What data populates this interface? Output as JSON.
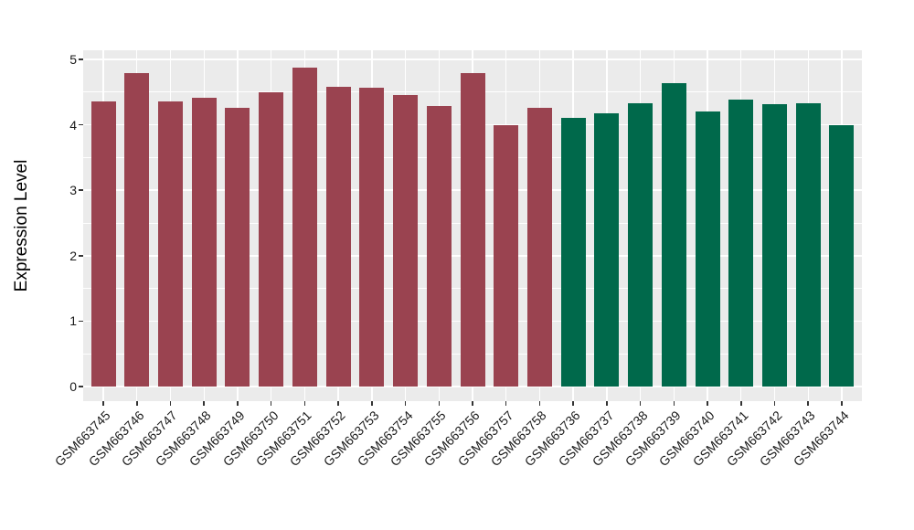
{
  "chart_data": {
    "type": "bar",
    "title": "",
    "xlabel": "",
    "ylabel": "Expression Level",
    "ylim": [
      0,
      5
    ],
    "yticks": [
      0,
      1,
      2,
      3,
      4,
      5
    ],
    "legend_position": "none",
    "grid": "white major and minor horizontal gridlines plus vertical gridlines at each category center, on gray panel",
    "panel_background": "#EBEBEB",
    "gridline_color": "#FFFFFF",
    "categories": [
      "GSM663745",
      "GSM663746",
      "GSM663747",
      "GSM663748",
      "GSM663749",
      "GSM663750",
      "GSM663751",
      "GSM663752",
      "GSM663753",
      "GSM663754",
      "GSM663755",
      "GSM663756",
      "GSM663757",
      "GSM663758",
      "GSM663736",
      "GSM663737",
      "GSM663738",
      "GSM663739",
      "GSM663740",
      "GSM663741",
      "GSM663742",
      "GSM663743",
      "GSM663744"
    ],
    "values": [
      4.36,
      4.79,
      4.36,
      4.41,
      4.26,
      4.5,
      4.87,
      4.58,
      4.57,
      4.46,
      4.29,
      4.79,
      3.99,
      4.26,
      4.1,
      4.17,
      4.33,
      4.64,
      4.2,
      4.38,
      4.31,
      4.33,
      4.0
    ],
    "bar_groups": [
      {
        "color": "#9A4350",
        "labels": [
          "GSM663745",
          "GSM663746",
          "GSM663747",
          "GSM663748",
          "GSM663749",
          "GSM663750",
          "GSM663751",
          "GSM663752",
          "GSM663753",
          "GSM663754",
          "GSM663755",
          "GSM663756",
          "GSM663757",
          "GSM663758"
        ]
      },
      {
        "color": "#00694B",
        "labels": [
          "GSM663736",
          "GSM663737",
          "GSM663738",
          "GSM663739",
          "GSM663740",
          "GSM663741",
          "GSM663742",
          "GSM663743",
          "GSM663744"
        ]
      }
    ]
  }
}
